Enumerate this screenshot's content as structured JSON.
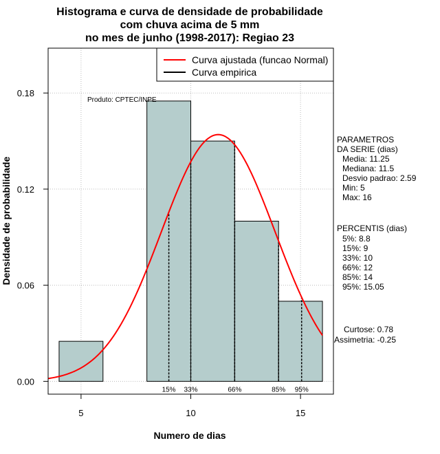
{
  "chart_data": {
    "type": "bar",
    "title_lines": [
      "Histograma e curva de densidade de probabilidade",
      "com chuva acima de 5 mm",
      "no mes de junho (1998-2017): Regiao 23"
    ],
    "xlabel": "Numero de dias",
    "ylabel": "Densidade de probabilidade",
    "xlim": [
      3.5,
      16.5
    ],
    "ylim": [
      -0.008,
      0.208
    ],
    "x_ticks": [
      5,
      10,
      15
    ],
    "y_ticks": [
      0.0,
      0.06,
      0.12,
      0.18
    ],
    "y_tick_labels": [
      "0.00",
      "0.06",
      "0.12",
      "0.18"
    ],
    "grid": true,
    "bars": [
      {
        "x0": 4,
        "x1": 6,
        "value": 0.025
      },
      {
        "x0": 6,
        "x1": 8,
        "value": 0.0
      },
      {
        "x0": 8,
        "x1": 10,
        "value": 0.175
      },
      {
        "x0": 10,
        "x1": 12,
        "value": 0.15
      },
      {
        "x0": 12,
        "x1": 14,
        "value": 0.1
      },
      {
        "x0": 14,
        "x1": 16,
        "value": 0.05
      }
    ],
    "normal_curve": {
      "mean": 11.25,
      "sd": 2.59,
      "x_from": 3.5,
      "x_to": 16.0,
      "color": "#ff0000"
    },
    "percentile_lines": [
      {
        "label": "15%",
        "x": 9
      },
      {
        "label": "33%",
        "x": 10
      },
      {
        "label": "66%",
        "x": 12
      },
      {
        "label": "85%",
        "x": 14
      },
      {
        "label": "95%",
        "x": 15.05
      }
    ],
    "legend": {
      "position": "top-right",
      "entries": [
        {
          "label": "Curva ajustada (funcao Normal)",
          "color": "#ff0000"
        },
        {
          "label": "Curva empirica",
          "color": "#000000"
        }
      ]
    },
    "annotation": "Produto: CPTEC/INPE",
    "colors": {
      "bar_fill": "#b5cdcc",
      "bar_stroke": "#000000",
      "grid": "#bbbbbb"
    }
  },
  "side_panel": {
    "parametros": [
      "PARAMETROS",
      "DA SERIE (dias)",
      "Media: 11.25",
      "Mediana: 11.5",
      "Desvio padrao: 2.59",
      "Min: 5",
      "Max: 16"
    ],
    "percentis": [
      "PERCENTIS (dias)",
      "5%: 8.8",
      "15%: 9",
      "33%: 10",
      "66%: 12",
      "85%: 14",
      "95%: 15.05"
    ],
    "shape": [
      "Curtose: 0.78",
      "Assimetria: -0.25"
    ]
  }
}
